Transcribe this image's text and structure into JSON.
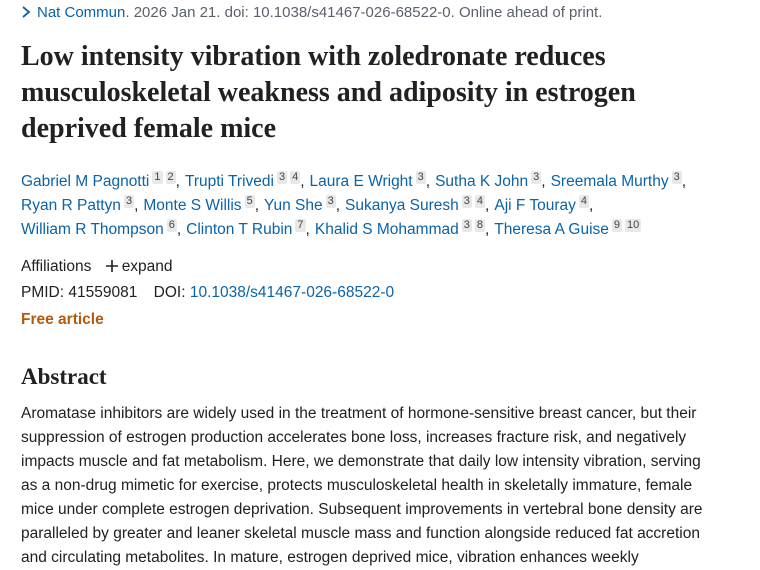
{
  "citation": {
    "journal": "Nat Commun",
    "details": ". 2026 Jan 21. doi: 10.1038/s41467-026-68522-0. Online ahead of print."
  },
  "title_lines": [
    "Low intensity vibration with zoledronate reduces",
    "musculoskeletal weakness and adiposity in estrogen",
    "deprived female mice"
  ],
  "author_rows": [
    [
      {
        "name": "Gabriel M Pagnotti",
        "affiliations": [
          1,
          2
        ],
        "separator": ","
      },
      {
        "name": "Trupti Trivedi",
        "affiliations": [
          3,
          4
        ],
        "separator": ","
      },
      {
        "name": "Laura E Wright",
        "affiliations": [
          3
        ],
        "separator": ","
      },
      {
        "name": "Sutha K John",
        "affiliations": [
          3
        ],
        "separator": ","
      },
      {
        "name": "Sreemala Murthy",
        "affiliations": [
          3
        ],
        "separator": ","
      }
    ],
    [
      {
        "name": "Ryan R Pattyn",
        "affiliations": [
          3
        ],
        "separator": ","
      },
      {
        "name": "Monte S Willis",
        "affiliations": [
          5
        ],
        "separator": ","
      },
      {
        "name": "Yun She",
        "affiliations": [
          3
        ],
        "separator": ","
      },
      {
        "name": "Sukanya Suresh",
        "affiliations": [
          3,
          4
        ],
        "separator": ","
      },
      {
        "name": "Aji F Touray",
        "affiliations": [
          4
        ],
        "separator": ","
      }
    ],
    [
      {
        "name": "William R Thompson",
        "affiliations": [
          6
        ],
        "separator": ","
      },
      {
        "name": "Clinton T Rubin",
        "affiliations": [
          7
        ],
        "separator": ","
      },
      {
        "name": "Khalid S Mohammad",
        "affiliations": [
          3,
          8
        ],
        "separator": ","
      },
      {
        "name": "Theresa A Guise",
        "affiliations": [
          9,
          10
        ]
      }
    ]
  ],
  "affiliations": {
    "label": "Affiliations",
    "expand": "expand"
  },
  "identifiers": {
    "pmid_label": "PMID:",
    "pmid": "41559081",
    "doi_label": "DOI:",
    "doi": "10.1038/s41467-026-68522-0"
  },
  "free_article": "Free article",
  "abstract": {
    "heading": "Abstract",
    "lines": [
      "Aromatase inhibitors are widely used in the treatment of hormone-sensitive breast cancer, but their",
      "suppression of estrogen production accelerates bone loss, increases fracture risk, and negatively",
      "impacts muscle and fat metabolism. Here, we demonstrate that daily low intensity vibration, serving",
      "as a non-drug mimetic for exercise, protects musculoskeletal health in skeletally immature, female",
      "mice under complete estrogen deprivation. Subsequent improvements in vertebral bone density are",
      "paralleled by greater and leaner skeletal muscle mass and function alongside reduced fat accretion",
      "and circulating metabolites. In mature, estrogen deprived mice, vibration enhances weekly"
    ]
  }
}
